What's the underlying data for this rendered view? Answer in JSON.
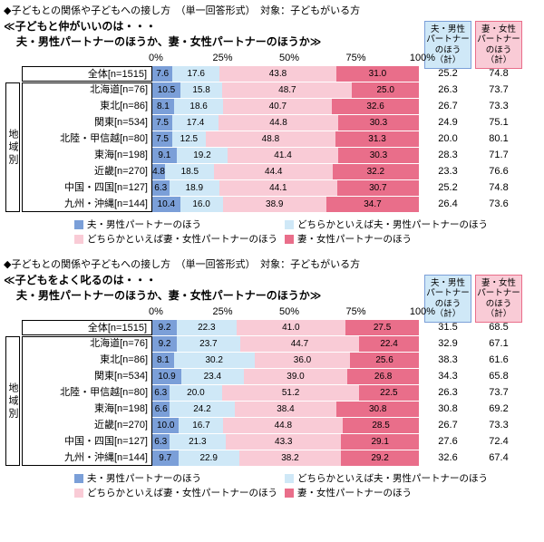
{
  "colors": {
    "segment_colors": [
      "#7b9fd8",
      "#cfe8f7",
      "#f9cbd6",
      "#e96e8a"
    ],
    "summary_header_bg": [
      "#cfe8f7",
      "#f9cbd6"
    ],
    "summary_header_border": [
      "#7b9fd8",
      "#e96e8a"
    ],
    "box_border": "#000000"
  },
  "chart_data": [
    {
      "type": "bar",
      "stacked": true,
      "orientation": "horizontal",
      "header": "◆子どもとの関係や子どもへの接し方　（単一回答形式）　対象：子どもがいる方",
      "title_line1": "≪子どもと仲がいいのは・・・",
      "title_line2": "夫・男性パートナーのほうか、妻・女性パートナーのほうか≫",
      "group_label": "地域別",
      "axis_ticks": [
        "0%",
        "25%",
        "50%",
        "75%",
        "100%"
      ],
      "xlim": [
        0,
        100
      ],
      "categories": [
        "全体[n=1515]",
        "北海道[n=76]",
        "東北[n=86]",
        "関東[n=534]",
        "北陸・甲信越[n=80]",
        "東海[n=198]",
        "近畿[n=270]",
        "中国・四国[n=127]",
        "九州・沖縄[n=144]"
      ],
      "series": [
        {
          "name": "夫・男性パートナーのほう",
          "values": [
            7.6,
            10.5,
            8.1,
            7.5,
            7.5,
            9.1,
            4.8,
            6.3,
            10.4
          ]
        },
        {
          "name": "どちらかといえば夫・男性パートナーのほう",
          "values": [
            17.6,
            15.8,
            18.6,
            17.4,
            12.5,
            19.2,
            18.5,
            18.9,
            16.0
          ]
        },
        {
          "name": "どちらかといえば妻・女性パートナーのほう",
          "values": [
            43.8,
            48.7,
            40.7,
            44.8,
            48.8,
            41.4,
            44.4,
            44.1,
            38.9
          ]
        },
        {
          "name": "妻・女性パートナーのほう",
          "values": [
            31.0,
            25.0,
            32.6,
            30.3,
            31.3,
            30.3,
            32.2,
            30.7,
            34.7
          ]
        }
      ],
      "summary_columns": [
        {
          "header": "夫・男性\nパートナー\nのほう\n（計）",
          "values": [
            25.2,
            26.3,
            26.7,
            24.9,
            20.0,
            28.3,
            23.3,
            25.2,
            26.4
          ]
        },
        {
          "header": "妻・女性\nパートナー\nのほう\n（計）",
          "values": [
            74.8,
            73.7,
            73.3,
            75.1,
            80.1,
            71.7,
            76.6,
            74.8,
            73.6
          ]
        }
      ]
    },
    {
      "type": "bar",
      "stacked": true,
      "orientation": "horizontal",
      "header": "◆子どもとの関係や子どもへの接し方　（単一回答形式）　対象：子どもがいる方",
      "title_line1": "≪子どもをよく叱るのは・・・",
      "title_line2": "夫・男性パートナーのほうか、妻・女性パートナーのほうか≫",
      "group_label": "地域別",
      "axis_ticks": [
        "0%",
        "25%",
        "50%",
        "75%",
        "100%"
      ],
      "xlim": [
        0,
        100
      ],
      "categories": [
        "全体[n=1515]",
        "北海道[n=76]",
        "東北[n=86]",
        "関東[n=534]",
        "北陸・甲信越[n=80]",
        "東海[n=198]",
        "近畿[n=270]",
        "中国・四国[n=127]",
        "九州・沖縄[n=144]"
      ],
      "series": [
        {
          "name": "夫・男性パートナーのほう",
          "values": [
            9.2,
            9.2,
            8.1,
            10.9,
            6.3,
            6.6,
            10.0,
            6.3,
            9.7
          ]
        },
        {
          "name": "どちらかといえば夫・男性パートナーのほう",
          "values": [
            22.3,
            23.7,
            30.2,
            23.4,
            20.0,
            24.2,
            16.7,
            21.3,
            22.9
          ]
        },
        {
          "name": "どちらかといえば妻・女性パートナーのほう",
          "values": [
            41.0,
            44.7,
            36.0,
            39.0,
            51.2,
            38.4,
            44.8,
            43.3,
            38.2
          ]
        },
        {
          "name": "妻・女性パートナーのほう",
          "values": [
            27.5,
            22.4,
            25.6,
            26.8,
            22.5,
            30.8,
            28.5,
            29.1,
            29.2
          ]
        }
      ],
      "summary_columns": [
        {
          "header": "夫・男性\nパートナー\nのほう\n（計）",
          "values": [
            31.5,
            32.9,
            38.3,
            34.3,
            26.3,
            30.8,
            26.7,
            27.6,
            32.6
          ]
        },
        {
          "header": "妻・女性\nパートナー\nのほう\n（計）",
          "values": [
            68.5,
            67.1,
            61.6,
            65.8,
            73.7,
            69.2,
            73.3,
            72.4,
            67.4
          ]
        }
      ]
    }
  ]
}
